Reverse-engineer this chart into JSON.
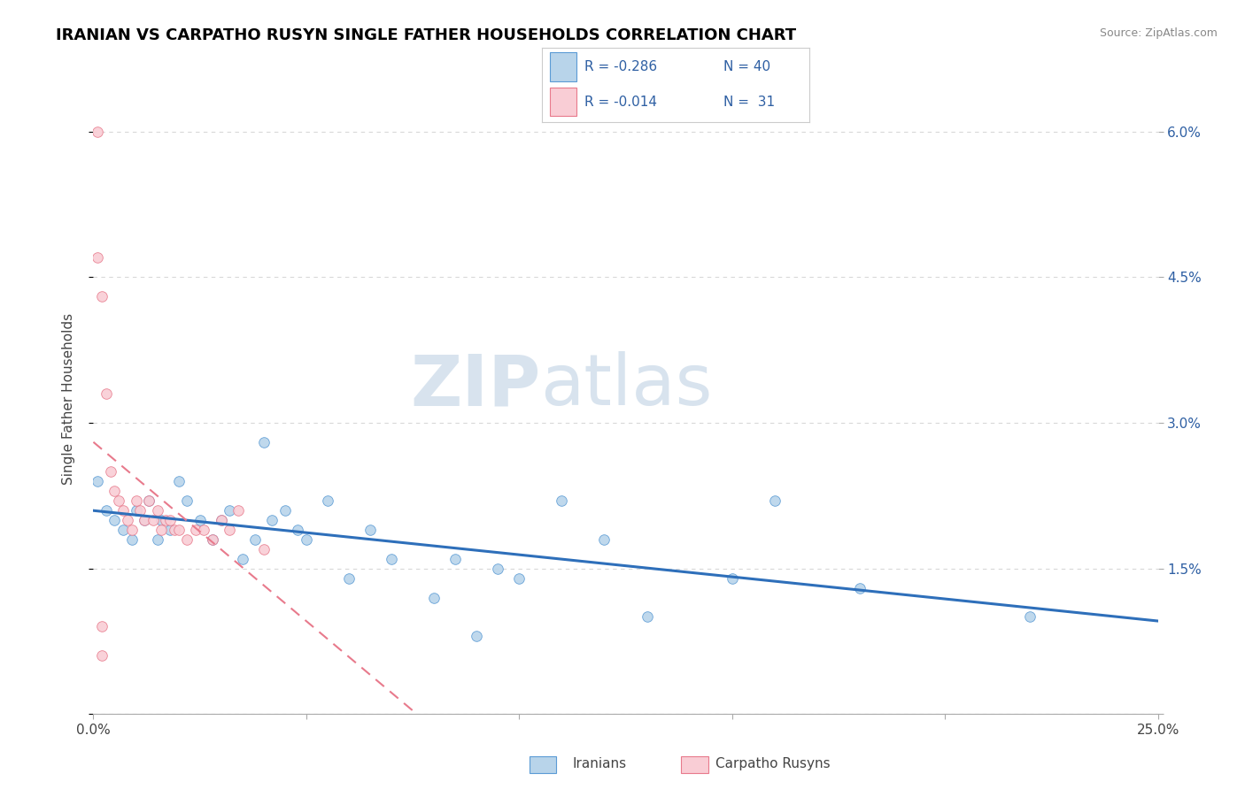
{
  "title": "IRANIAN VS CARPATHO RUSYN SINGLE FATHER HOUSEHOLDS CORRELATION CHART",
  "source": "Source: ZipAtlas.com",
  "ylabel_label": "Single Father Households",
  "watermark_zip": "ZIP",
  "watermark_atlas": "atlas",
  "xmin": 0.0,
  "xmax": 0.25,
  "ymin": 0.0,
  "ymax": 0.065,
  "xtick_positions": [
    0.0,
    0.05,
    0.1,
    0.15,
    0.2,
    0.25
  ],
  "xtick_labels": [
    "0.0%",
    "",
    "",
    "",
    "",
    "25.0%"
  ],
  "ytick_positions": [
    0.0,
    0.015,
    0.03,
    0.045,
    0.06
  ],
  "ytick_labels": [
    "",
    "1.5%",
    "3.0%",
    "4.5%",
    "6.0%"
  ],
  "legend_r1": "-0.286",
  "legend_n1": "40",
  "legend_r2": "-0.014",
  "legend_n2": "31",
  "color_iranian_fill": "#b8d4ea",
  "color_iranian_edge": "#5b9bd5",
  "color_carpatho_fill": "#f9cdd5",
  "color_carpatho_edge": "#e87a8c",
  "color_line_iranian": "#2e6fba",
  "color_line_carpatho": "#e87a8c",
  "color_grid": "#d8d8d8",
  "color_rvalue": "#2e5fa3",
  "iranians_x": [
    0.001,
    0.003,
    0.005,
    0.007,
    0.009,
    0.01,
    0.012,
    0.013,
    0.015,
    0.016,
    0.018,
    0.02,
    0.022,
    0.025,
    0.028,
    0.03,
    0.032,
    0.035,
    0.038,
    0.04,
    0.042,
    0.045,
    0.048,
    0.05,
    0.055,
    0.06,
    0.065,
    0.07,
    0.08,
    0.085,
    0.09,
    0.095,
    0.1,
    0.11,
    0.12,
    0.13,
    0.15,
    0.16,
    0.18,
    0.22
  ],
  "iranians_y": [
    0.024,
    0.021,
    0.02,
    0.019,
    0.018,
    0.021,
    0.02,
    0.022,
    0.018,
    0.02,
    0.019,
    0.024,
    0.022,
    0.02,
    0.018,
    0.02,
    0.021,
    0.016,
    0.018,
    0.028,
    0.02,
    0.021,
    0.019,
    0.018,
    0.022,
    0.014,
    0.019,
    0.016,
    0.012,
    0.016,
    0.008,
    0.015,
    0.014,
    0.022,
    0.018,
    0.01,
    0.014,
    0.022,
    0.013,
    0.01
  ],
  "carpatho_x": [
    0.001,
    0.001,
    0.002,
    0.002,
    0.003,
    0.004,
    0.005,
    0.006,
    0.007,
    0.008,
    0.009,
    0.01,
    0.011,
    0.012,
    0.013,
    0.014,
    0.015,
    0.016,
    0.017,
    0.018,
    0.019,
    0.02,
    0.022,
    0.024,
    0.026,
    0.028,
    0.03,
    0.032,
    0.034,
    0.04,
    0.002
  ],
  "carpatho_y": [
    0.06,
    0.047,
    0.043,
    0.006,
    0.033,
    0.025,
    0.023,
    0.022,
    0.021,
    0.02,
    0.019,
    0.022,
    0.021,
    0.02,
    0.022,
    0.02,
    0.021,
    0.019,
    0.02,
    0.02,
    0.019,
    0.019,
    0.018,
    0.019,
    0.019,
    0.018,
    0.02,
    0.019,
    0.021,
    0.017,
    0.009
  ]
}
